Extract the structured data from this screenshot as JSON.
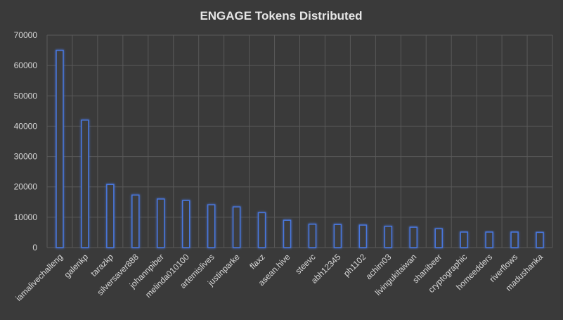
{
  "chart_data": {
    "type": "bar",
    "title": "ENGAGE Tokens Distributed",
    "xlabel": "",
    "ylabel": "",
    "ylim": [
      0,
      70000
    ],
    "yticks": [
      0,
      10000,
      20000,
      30000,
      40000,
      50000,
      60000,
      70000
    ],
    "grid": true,
    "legend": "none",
    "categories": [
      "iamalivechalleng",
      "galenkp",
      "tarazkp",
      "silversaver888",
      "johannpiber",
      "melinda010100",
      "artemislives",
      "justinparke",
      "flaxz",
      "asean.hive",
      "steevc",
      "abh12345",
      "ph1102",
      "achim03",
      "livingukitaiwan",
      "shanibeer",
      "cryptographic",
      "homeedders",
      "riverflows",
      "madushanka"
    ],
    "values": [
      65000,
      42000,
      20800,
      17300,
      16000,
      15500,
      14100,
      13400,
      11500,
      9000,
      7700,
      7600,
      7400,
      7000,
      6700,
      6200,
      5100,
      5100,
      5100,
      5000
    ],
    "colors": {
      "background": "#3a3a3a",
      "gridline": "#595959",
      "bar_edge": "#4a78e0",
      "bar_fill": "#3e3e3e",
      "text": "#d9d9d9"
    }
  }
}
